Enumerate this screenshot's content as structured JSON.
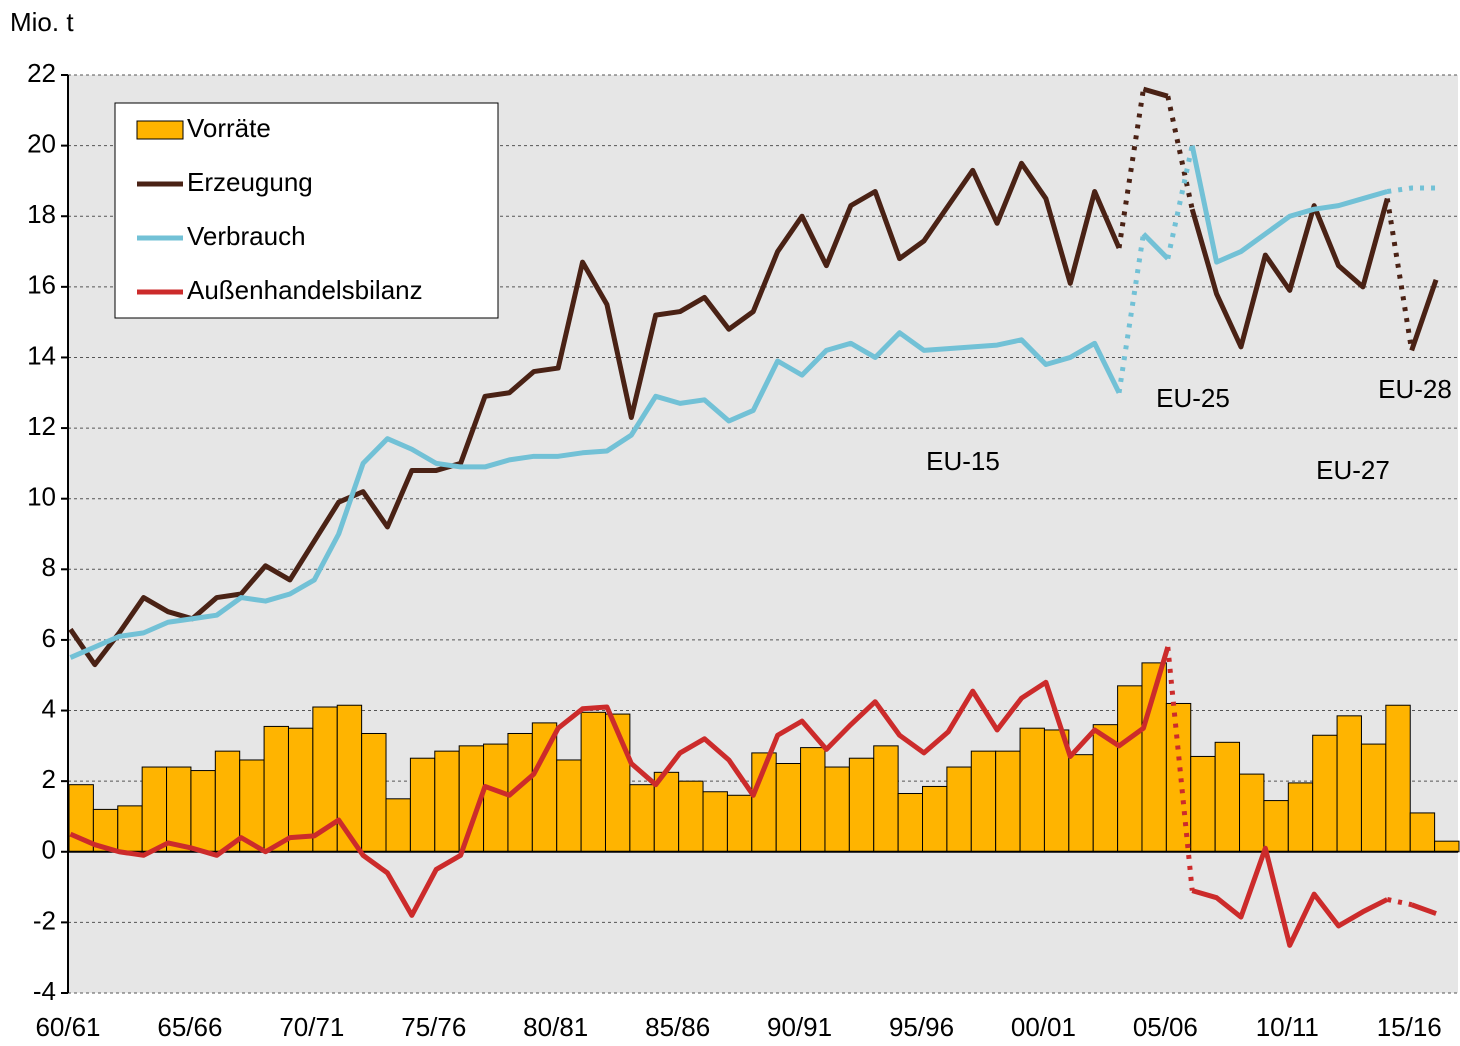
{
  "chart_data": {
    "type": "bar",
    "y_label": "Mio. t",
    "categories": [
      "60/61",
      null,
      null,
      null,
      null,
      "65/66",
      null,
      null,
      null,
      null,
      "70/71",
      null,
      null,
      null,
      null,
      "75/76",
      null,
      null,
      null,
      null,
      "80/81",
      null,
      null,
      null,
      null,
      "85/86",
      null,
      null,
      null,
      null,
      "90/91",
      null,
      null,
      null,
      null,
      "95/96",
      null,
      null,
      null,
      null,
      "00/01",
      null,
      null,
      null,
      null,
      "05/06",
      null,
      null,
      null,
      null,
      "10/11",
      null,
      null,
      null,
      null,
      "15/16",
      null
    ],
    "series": [
      {
        "name": "Vorräte",
        "type": "bar",
        "color": "#ffb400",
        "values": [
          1.9,
          1.2,
          1.3,
          2.4,
          2.4,
          2.3,
          2.85,
          2.6,
          3.55,
          3.5,
          4.1,
          4.15,
          3.35,
          1.5,
          2.65,
          2.85,
          3.0,
          3.05,
          3.35,
          3.65,
          2.6,
          3.95,
          3.9,
          1.9,
          2.25,
          2.0,
          1.7,
          1.6,
          2.8,
          2.5,
          2.95,
          2.4,
          2.65,
          3.0,
          1.65,
          1.85,
          2.4,
          2.85,
          2.85,
          3.5,
          3.45,
          2.75,
          3.6,
          4.7,
          5.35,
          4.2,
          2.7,
          3.1,
          2.2,
          1.45,
          1.95,
          3.3,
          3.85,
          3.05,
          4.15,
          1.1,
          0.3
        ]
      },
      {
        "name": "Erzeugung",
        "type": "line",
        "color": "#4a2215",
        "dotted_segments": [
          43,
          45,
          54
        ],
        "values": [
          6.3,
          5.3,
          6.2,
          7.2,
          6.8,
          6.6,
          7.2,
          7.3,
          8.1,
          7.7,
          8.8,
          9.9,
          10.2,
          9.2,
          10.8,
          10.8,
          11.0,
          12.9,
          13.0,
          13.6,
          13.7,
          16.7,
          15.5,
          12.3,
          15.2,
          15.3,
          15.7,
          14.8,
          15.3,
          17.0,
          18.0,
          16.6,
          18.3,
          18.7,
          16.8,
          17.3,
          18.3,
          19.3,
          17.8,
          19.5,
          18.5,
          16.1,
          18.7,
          17.1,
          21.6,
          21.4,
          18.2,
          15.8,
          14.3,
          16.9,
          15.9,
          18.3,
          16.6,
          16.0,
          18.5,
          14.2,
          16.2
        ]
      },
      {
        "name": "Verbrauch",
        "type": "line",
        "color": "#72c1d6",
        "dotted_segments": [
          43,
          45,
          54,
          55
        ],
        "values": [
          5.5,
          5.8,
          6.1,
          6.2,
          6.5,
          6.6,
          6.7,
          7.2,
          7.1,
          7.3,
          7.7,
          9.0,
          11.0,
          11.7,
          11.4,
          11.0,
          10.9,
          10.9,
          11.1,
          11.2,
          11.2,
          11.3,
          11.35,
          11.8,
          12.9,
          12.7,
          12.8,
          12.2,
          12.5,
          13.9,
          13.5,
          14.2,
          14.4,
          14.0,
          14.7,
          14.2,
          14.25,
          14.3,
          14.35,
          14.5,
          13.8,
          14.0,
          14.4,
          13.0,
          17.5,
          16.8,
          20.0,
          16.7,
          17.0,
          17.5,
          18.0,
          18.2,
          18.3,
          18.5,
          18.7,
          18.8,
          18.8
        ]
      },
      {
        "name": "Außenhandelsbilanz",
        "type": "line",
        "color": "#cc2b2b",
        "dotted_segments": [
          45,
          54
        ],
        "values": [
          0.5,
          0.2,
          0.0,
          -0.1,
          0.25,
          0.1,
          -0.1,
          0.4,
          0.0,
          0.4,
          0.45,
          0.9,
          -0.1,
          -0.6,
          -1.8,
          -0.5,
          -0.1,
          1.85,
          1.6,
          2.2,
          3.5,
          4.05,
          4.1,
          2.5,
          1.9,
          2.8,
          3.2,
          2.6,
          1.6,
          3.3,
          3.7,
          2.9,
          3.6,
          4.25,
          3.3,
          2.8,
          3.4,
          4.55,
          3.45,
          4.35,
          4.8,
          2.7,
          3.45,
          3.0,
          3.5,
          5.8,
          -1.1,
          -1.3,
          -1.85,
          0.1,
          -2.65,
          -1.2,
          -2.1,
          -1.7,
          -1.35,
          -1.5,
          -1.75
        ]
      }
    ],
    "annotations": [
      "EU-15",
      "EU-25",
      "EU-27",
      "EU-28"
    ],
    "ylim": [
      -4,
      22
    ],
    "yticks": [
      -4,
      -2,
      0,
      2,
      4,
      6,
      8,
      10,
      12,
      14,
      16,
      18,
      20,
      22
    ],
    "grid": true,
    "legend": "top-left"
  }
}
